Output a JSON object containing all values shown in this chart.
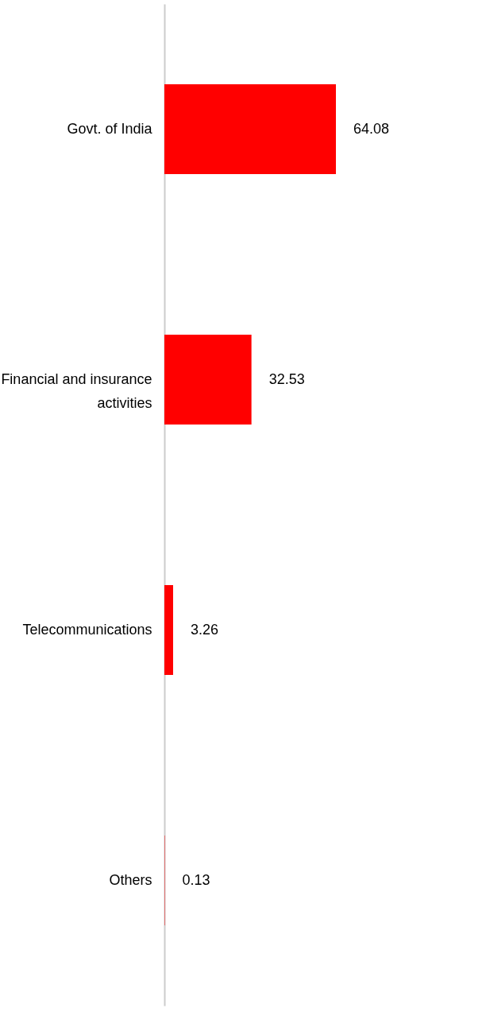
{
  "chart_data": {
    "type": "bar",
    "orientation": "horizontal",
    "categories": [
      "Govt. of India",
      "Financial and insurance activities",
      "Telecommunications",
      "Others"
    ],
    "values": [
      64.08,
      32.53,
      3.26,
      0.13
    ],
    "color": "#ff0000",
    "data_labels": true
  }
}
